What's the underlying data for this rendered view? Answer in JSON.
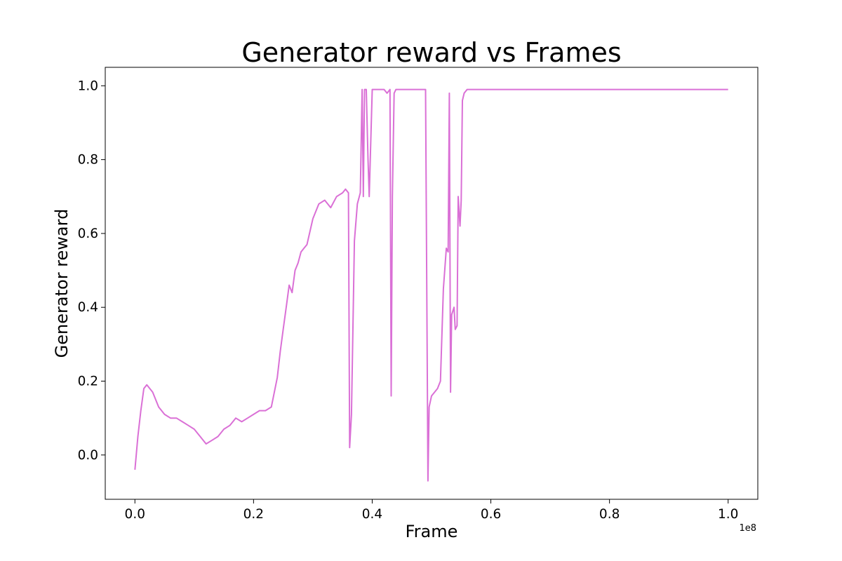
{
  "chart_data": {
    "type": "line",
    "title": "Generator reward vs Frames",
    "xlabel": "Frame",
    "ylabel": "Generator reward",
    "x_offset_text": "1e8",
    "xlim": [
      -0.05,
      1.05
    ],
    "ylim": [
      -0.12,
      1.05
    ],
    "x_ticks": [
      0.0,
      0.2,
      0.4,
      0.6,
      0.8,
      1.0
    ],
    "x_tick_labels": [
      "0.0",
      "0.2",
      "0.4",
      "0.6",
      "0.8",
      "1.0"
    ],
    "y_ticks": [
      0.0,
      0.2,
      0.4,
      0.6,
      0.8,
      1.0
    ],
    "y_tick_labels": [
      "0.0",
      "0.2",
      "0.4",
      "0.6",
      "0.8",
      "1.0"
    ],
    "grid": false,
    "legend": "none",
    "color": "#da70d6",
    "series": [
      {
        "x": [
          0.0,
          0.005,
          0.01,
          0.015,
          0.02,
          0.03,
          0.04,
          0.05,
          0.06,
          0.07,
          0.08,
          0.09,
          0.1,
          0.11,
          0.12,
          0.13,
          0.14,
          0.15,
          0.16,
          0.17,
          0.18,
          0.19,
          0.2,
          0.21,
          0.22,
          0.23,
          0.24,
          0.245,
          0.25,
          0.255,
          0.26,
          0.265,
          0.27,
          0.275,
          0.28,
          0.285,
          0.29,
          0.3,
          0.31,
          0.32,
          0.33,
          0.34,
          0.35,
          0.355,
          0.36,
          0.362,
          0.365,
          0.37,
          0.375,
          0.38,
          0.383,
          0.385,
          0.387,
          0.39,
          0.393,
          0.395,
          0.4,
          0.405,
          0.41,
          0.415,
          0.42,
          0.425,
          0.43,
          0.432,
          0.434,
          0.437,
          0.44,
          0.445,
          0.45,
          0.46,
          0.47,
          0.48,
          0.49,
          0.494,
          0.496,
          0.5,
          0.51,
          0.515,
          0.52,
          0.525,
          0.528,
          0.53,
          0.532,
          0.534,
          0.538,
          0.54,
          0.543,
          0.545,
          0.548,
          0.55,
          0.552,
          0.555,
          0.56,
          0.57,
          0.58,
          0.6,
          0.62,
          0.64,
          0.66,
          0.68,
          0.7,
          0.72,
          0.75,
          0.8,
          0.85,
          0.9,
          0.95,
          1.0
        ],
        "y": [
          -0.04,
          0.05,
          0.12,
          0.18,
          0.19,
          0.17,
          0.13,
          0.11,
          0.1,
          0.1,
          0.09,
          0.08,
          0.07,
          0.05,
          0.03,
          0.04,
          0.05,
          0.07,
          0.08,
          0.1,
          0.09,
          0.1,
          0.11,
          0.12,
          0.12,
          0.13,
          0.21,
          0.28,
          0.34,
          0.4,
          0.46,
          0.44,
          0.5,
          0.52,
          0.55,
          0.56,
          0.57,
          0.64,
          0.68,
          0.69,
          0.67,
          0.7,
          0.71,
          0.72,
          0.71,
          0.02,
          0.11,
          0.58,
          0.68,
          0.71,
          0.99,
          0.7,
          0.99,
          0.99,
          0.8,
          0.7,
          0.99,
          0.99,
          0.99,
          0.99,
          0.99,
          0.98,
          0.99,
          0.16,
          0.7,
          0.98,
          0.99,
          0.99,
          0.99,
          0.99,
          0.99,
          0.99,
          0.99,
          -0.07,
          0.13,
          0.16,
          0.18,
          0.2,
          0.45,
          0.56,
          0.55,
          0.98,
          0.17,
          0.38,
          0.4,
          0.34,
          0.35,
          0.7,
          0.62,
          0.69,
          0.96,
          0.98,
          0.99,
          0.99,
          0.99,
          0.99,
          0.99,
          0.99,
          0.99,
          0.99,
          0.99,
          0.99,
          0.99,
          0.99,
          0.99,
          0.99,
          0.99,
          0.99
        ]
      }
    ]
  }
}
